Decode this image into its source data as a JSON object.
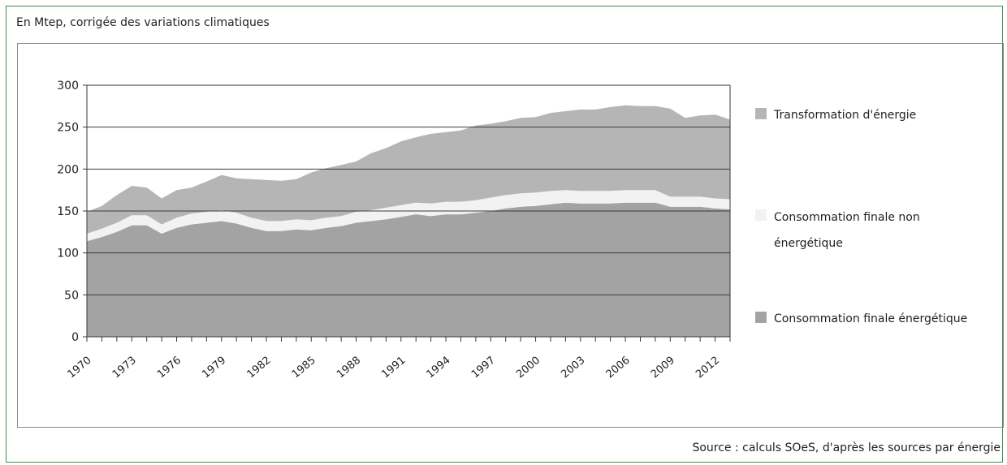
{
  "header": {
    "subtitle": "En Mtep, corrigée des variations climatiques"
  },
  "footer": {
    "source": "Source : calculs SOeS, d'après les sources par énergie"
  },
  "colors": {
    "transformation": "#b5b5b5",
    "non_energetique": "#f2f2f2",
    "energetique": "#a3a3a3",
    "border": "#3f8f4a"
  },
  "chart_data": {
    "type": "area",
    "stacked": true,
    "x": [
      1970,
      1971,
      1972,
      1973,
      1974,
      1975,
      1976,
      1977,
      1978,
      1979,
      1980,
      1981,
      1982,
      1983,
      1984,
      1985,
      1986,
      1987,
      1988,
      1989,
      1990,
      1991,
      1992,
      1993,
      1994,
      1995,
      1996,
      1997,
      1998,
      1999,
      2000,
      2001,
      2002,
      2003,
      2004,
      2005,
      2006,
      2007,
      2008,
      2009,
      2010,
      2011,
      2012,
      2013
    ],
    "x_tick_labels": [
      "1970",
      "1973",
      "1976",
      "1979",
      "1982",
      "1985",
      "1988",
      "1991",
      "1994",
      "1997",
      "2000",
      "2003",
      "2006",
      "2009",
      "2012"
    ],
    "y_ticks": [
      0,
      50,
      100,
      150,
      200,
      250,
      300
    ],
    "ylim": [
      0,
      300
    ],
    "grid": "horizontal",
    "legend_position": "right",
    "series": [
      {
        "name": "Consommation finale énergétique",
        "values": [
          114,
          119,
          125,
          133,
          133,
          123,
          130,
          134,
          136,
          138,
          135,
          130,
          126,
          126,
          128,
          127,
          130,
          132,
          136,
          138,
          140,
          143,
          146,
          144,
          146,
          146,
          148,
          150,
          153,
          155,
          156,
          158,
          160,
          159,
          159,
          159,
          160,
          160,
          160,
          155,
          155,
          155,
          153,
          152
        ]
      },
      {
        "name": "Consommation finale non énergétique",
        "values": [
          9,
          10,
          11,
          12,
          12,
          11,
          12,
          13,
          13,
          13,
          13,
          12,
          12,
          12,
          12,
          12,
          12,
          12,
          13,
          13,
          14,
          14,
          14,
          15,
          15,
          15,
          15,
          16,
          16,
          16,
          16,
          16,
          15,
          15,
          15,
          15,
          15,
          15,
          15,
          12,
          12,
          12,
          12,
          12
        ]
      },
      {
        "name": "Transformation d'énergie",
        "values": [
          26,
          27,
          33,
          35,
          33,
          31,
          33,
          31,
          36,
          42,
          41,
          46,
          49,
          48,
          48,
          57,
          59,
          61,
          60,
          68,
          71,
          76,
          78,
          83,
          83,
          85,
          89,
          88,
          88,
          90,
          90,
          93,
          94,
          97,
          97,
          100,
          101,
          100,
          100,
          105,
          94,
          97,
          100,
          95
        ]
      }
    ],
    "legend_entries": [
      "Transformation d'énergie",
      "Consommation finale non",
      "énergétique",
      "Consommation finale énergétique"
    ]
  }
}
